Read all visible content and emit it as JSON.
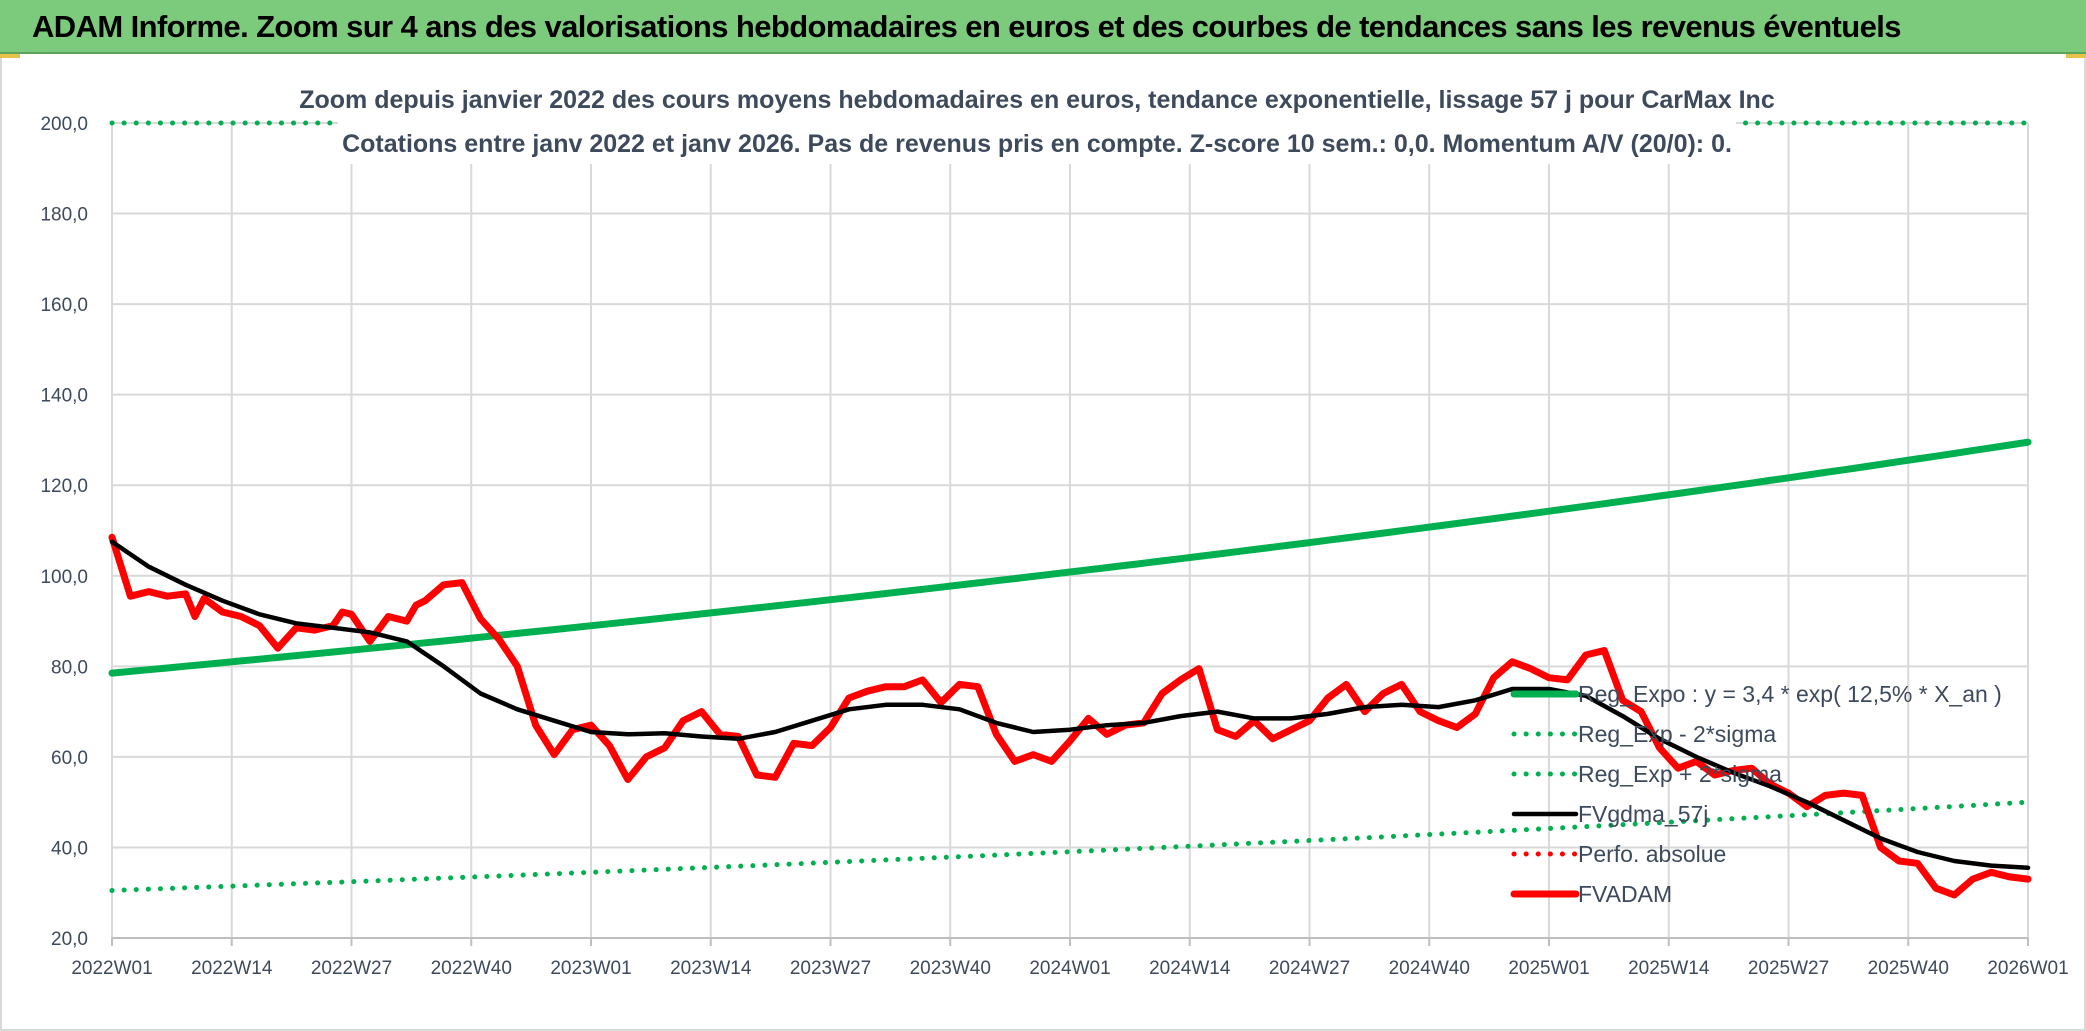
{
  "banner": {
    "title": "ADAM Informe. Zoom sur 4 ans des valorisations hebdomadaires en euros et des courbes de tendances sans les revenus éventuels"
  },
  "chart_data": {
    "type": "line",
    "title": "Zoom depuis janvier 2022 des cours moyens hebdomadaires en euros, tendance exponentielle, lissage 57 j pour CarMax Inc",
    "subtitle": "Cotations entre janv 2022 et janv 2026. Pas de revenus pris en compte. Z-score 10 sem.: 0,0. Momentum A/V (20/0): 0.",
    "xlabel": "",
    "ylabel": "",
    "ylim": [
      20,
      200
    ],
    "yticks": [
      "20,0",
      "40,0",
      "60,0",
      "80,0",
      "100,0",
      "120,0",
      "140,0",
      "160,0",
      "180,0",
      "200,0"
    ],
    "ytick_values": [
      20,
      40,
      60,
      80,
      100,
      120,
      140,
      160,
      180,
      200
    ],
    "xlim": [
      0,
      208
    ],
    "xticks": [
      "2022W01",
      "2022W14",
      "2022W27",
      "2022W40",
      "2023W01",
      "2023W14",
      "2023W27",
      "2023W40",
      "2024W01",
      "2024W14",
      "2024W27",
      "2024W40",
      "2025W01",
      "2025W14",
      "2025W27",
      "2025W40",
      "2026W01"
    ],
    "xtick_index": [
      0,
      13,
      26,
      39,
      52,
      65,
      78,
      91,
      104,
      117,
      130,
      143,
      156,
      169,
      182,
      195,
      208
    ],
    "grid": true,
    "legend_position": "right",
    "series": [
      {
        "name": "Reg_Expo : y = 3,4 * exp( 12,5% *  X_an )",
        "color": "#00b050",
        "style": "solid-thick",
        "x": [
          0,
          208
        ],
        "values": [
          78.5,
          129.5
        ],
        "curve": "exponential"
      },
      {
        "name": "Reg_Exp - 2*sigma",
        "color": "#00b050",
        "style": "dotted",
        "x": [
          0,
          208
        ],
        "values": [
          30.5,
          50.0
        ],
        "curve": "exponential"
      },
      {
        "name": "Reg_Exp + 2*sigma",
        "color": "#00b050",
        "style": "dotted",
        "x": [
          0,
          208
        ],
        "values": [
          200,
          200
        ],
        "curve": "linear"
      },
      {
        "name": "FVgdma_57j",
        "color": "#000000",
        "style": "solid",
        "x": [
          0,
          4,
          8,
          12,
          16,
          20,
          24,
          28,
          32,
          36,
          40,
          44,
          48,
          52,
          56,
          60,
          64,
          68,
          72,
          76,
          80,
          84,
          88,
          92,
          96,
          100,
          104,
          108,
          112,
          116,
          120,
          124,
          128,
          132,
          136,
          140,
          144,
          148,
          152,
          156,
          160,
          164,
          168,
          172,
          176,
          180,
          184,
          188,
          192,
          196,
          200,
          204,
          208
        ],
        "values": [
          107.5,
          102,
          98,
          94.5,
          91.5,
          89.5,
          88.5,
          87.5,
          85.5,
          80,
          74,
          70.5,
          68,
          65.5,
          65,
          65.2,
          64.5,
          64,
          65.5,
          68,
          70.5,
          71.5,
          71.5,
          70.5,
          67.5,
          65.5,
          66,
          67,
          67.5,
          69,
          70,
          68.5,
          68.5,
          69.5,
          71,
          71.5,
          71,
          72.5,
          75,
          75,
          73.5,
          69,
          64,
          60,
          56.5,
          53.5,
          50,
          46,
          42,
          39,
          37,
          36,
          35.5
        ]
      },
      {
        "name": "Perfo. absolue",
        "color": "#ff0000",
        "style": "dotted",
        "x": [],
        "values": []
      },
      {
        "name": "FVADAM",
        "color": "#ff0000",
        "style": "solid-thick",
        "x": [
          0,
          2,
          4,
          6,
          8,
          9,
          10,
          12,
          14,
          16,
          18,
          20,
          22,
          24,
          25,
          26,
          28,
          30,
          32,
          33,
          34,
          36,
          38,
          40,
          42,
          44,
          46,
          48,
          50,
          52,
          54,
          56,
          58,
          60,
          62,
          64,
          66,
          68,
          70,
          72,
          74,
          76,
          78,
          80,
          82,
          84,
          86,
          88,
          90,
          92,
          94,
          96,
          98,
          100,
          102,
          104,
          106,
          108,
          110,
          112,
          114,
          116,
          118,
          120,
          122,
          124,
          126,
          128,
          130,
          132,
          134,
          136,
          138,
          140,
          142,
          144,
          146,
          148,
          150,
          152,
          154,
          156,
          158,
          160,
          162,
          164,
          166,
          168,
          170,
          172,
          174,
          176,
          178,
          180,
          182,
          184,
          186,
          188,
          190,
          192,
          194,
          196,
          198,
          200,
          202,
          204,
          206,
          208
        ],
        "values": [
          108.5,
          95.5,
          96.5,
          95.5,
          96,
          91,
          95,
          92,
          91,
          89,
          84,
          88.5,
          88,
          89,
          92,
          91.5,
          85.5,
          91,
          90,
          93.5,
          94.5,
          98,
          98.5,
          90.5,
          86,
          80,
          67,
          60.5,
          66,
          67,
          62.5,
          55,
          60,
          62,
          68,
          70,
          65,
          64.5,
          56,
          55.5,
          63,
          62.5,
          66.5,
          73,
          74.5,
          75.5,
          75.5,
          77,
          72,
          76,
          75.5,
          65,
          59,
          60.5,
          59,
          63.5,
          68.5,
          65,
          67,
          67.5,
          74,
          77,
          79.5,
          66,
          64.5,
          68,
          64,
          66,
          68,
          73,
          76,
          70,
          74,
          76,
          70,
          68,
          66.5,
          69.5,
          77.5,
          81,
          79.5,
          77.5,
          77,
          82.5,
          83.5,
          72.5,
          70,
          62,
          57.5,
          59,
          56,
          57,
          57.5,
          54,
          52,
          49,
          51.5,
          52,
          51.5,
          40,
          37,
          36.5,
          31,
          29.5,
          33,
          34.5,
          33.5,
          33
        ]
      }
    ]
  }
}
